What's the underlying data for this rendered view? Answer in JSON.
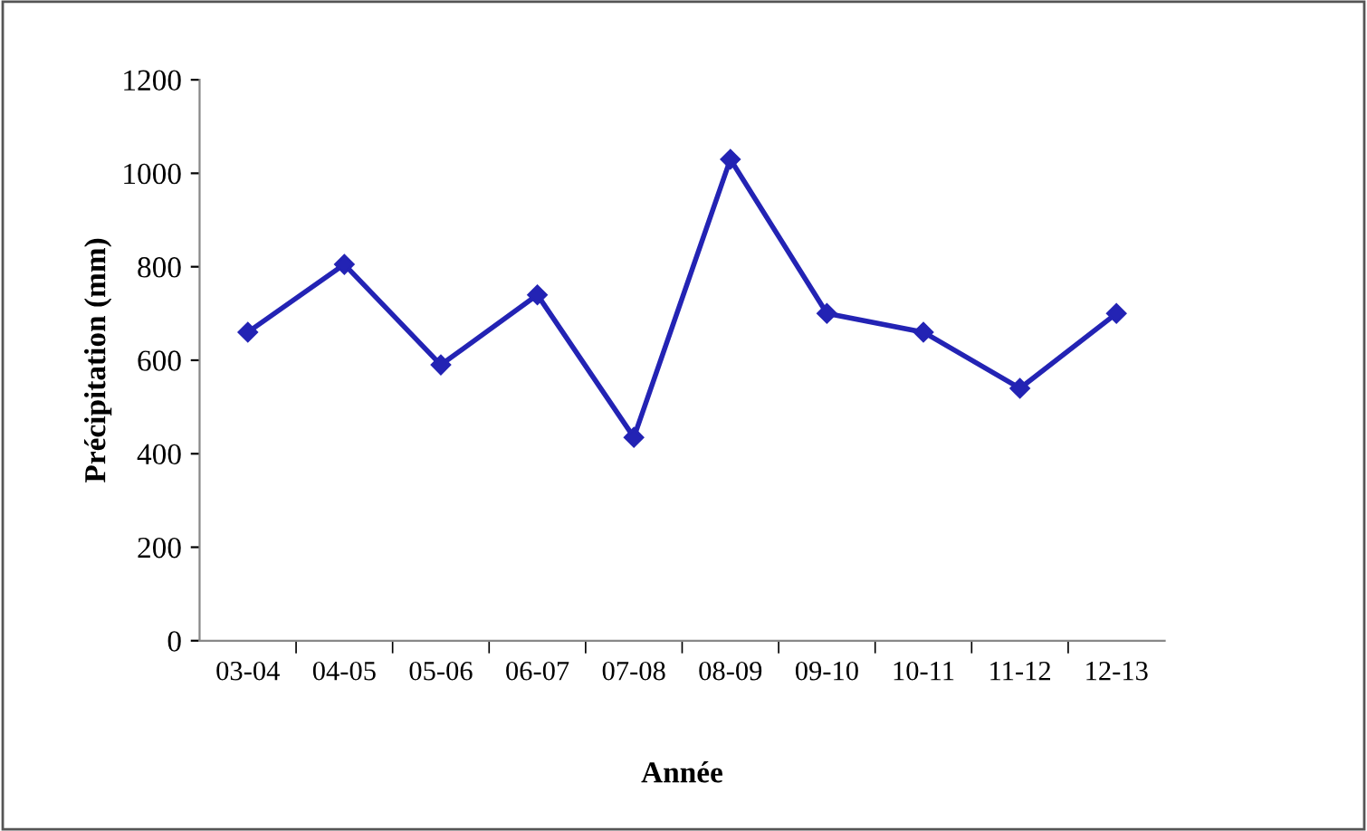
{
  "chart_data": {
    "type": "line",
    "xlabel": "Année",
    "ylabel": "Précipitation (mm)",
    "categories": [
      "03-04",
      "04-05",
      "05-06",
      "06-07",
      "07-08",
      "08-09",
      "09-10",
      "10-11",
      "11-12",
      "12-13"
    ],
    "series": [
      {
        "color": "#2323b4",
        "values": [
          660,
          805,
          590,
          740,
          435,
          1030,
          700,
          660,
          540,
          700
        ]
      }
    ],
    "ylim": [
      0,
      1200
    ],
    "yticks": [
      0,
      200,
      400,
      600,
      800,
      1000,
      1200
    ],
    "grid": false,
    "legend": false,
    "marker": "diamond",
    "line_style": "solid"
  }
}
